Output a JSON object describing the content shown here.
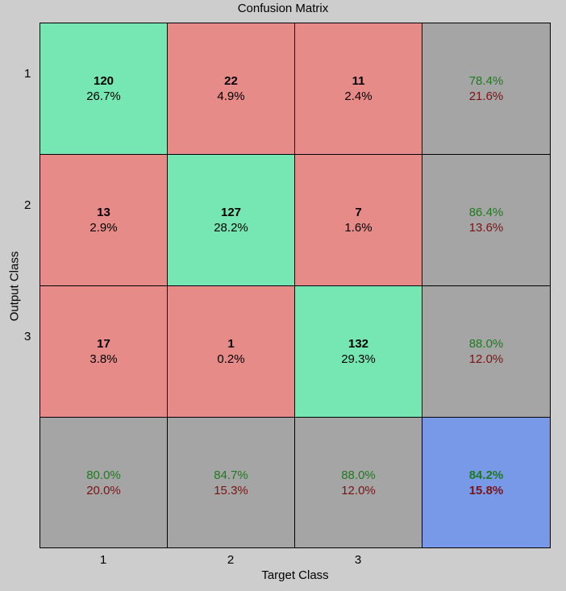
{
  "chart_data": {
    "type": "heatmap",
    "title": "Confusion Matrix",
    "xlabel": "Target Class",
    "ylabel": "Output Class",
    "x_tick_labels": [
      "1",
      "2",
      "3"
    ],
    "y_tick_labels": [
      "1",
      "2",
      "3"
    ],
    "colors": {
      "correct": "#76e6b2",
      "incorrect": "#e78b89",
      "summary": "#a5a5a5",
      "overall": "#7899e8",
      "correct_text": "#1f7a1f",
      "error_text": "#7a1414"
    },
    "cells": [
      [
        {
          "count": "120",
          "percent": "26.7%"
        },
        {
          "count": "22",
          "percent": "4.9%"
        },
        {
          "count": "11",
          "percent": "2.4%"
        }
      ],
      [
        {
          "count": "13",
          "percent": "2.9%"
        },
        {
          "count": "127",
          "percent": "28.2%"
        },
        {
          "count": "7",
          "percent": "1.6%"
        }
      ],
      [
        {
          "count": "17",
          "percent": "3.8%"
        },
        {
          "count": "1",
          "percent": "0.2%"
        },
        {
          "count": "132",
          "percent": "29.3%"
        }
      ]
    ],
    "row_summary": [
      {
        "correct": "78.4%",
        "error": "21.6%"
      },
      {
        "correct": "86.4%",
        "error": "13.6%"
      },
      {
        "correct": "88.0%",
        "error": "12.0%"
      }
    ],
    "col_summary": [
      {
        "correct": "80.0%",
        "error": "20.0%"
      },
      {
        "correct": "84.7%",
        "error": "15.3%"
      },
      {
        "correct": "88.0%",
        "error": "12.0%"
      }
    ],
    "overall": {
      "correct": "84.2%",
      "error": "15.8%"
    }
  }
}
